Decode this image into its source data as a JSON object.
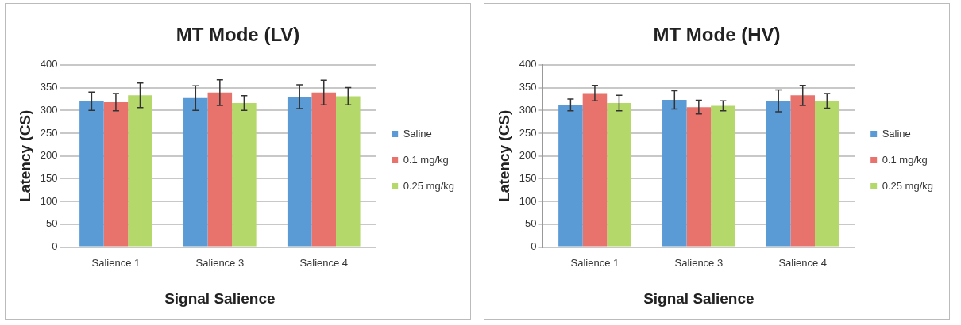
{
  "chart_data": [
    {
      "type": "bar",
      "title": "MT Mode (LV)",
      "xlabel": "Signal Salience",
      "ylabel": "Latency (CS)",
      "categories": [
        "Salience 1",
        "Salience 3",
        "Salience 4"
      ],
      "series": [
        {
          "name": "Saline",
          "color": "#5b9bd5",
          "values": [
            320,
            327,
            330
          ],
          "errors": [
            20,
            27,
            26
          ]
        },
        {
          "name": "0.1 mg/kg",
          "color": "#e8736c",
          "values": [
            318,
            339,
            339
          ],
          "errors": [
            19,
            28,
            27
          ]
        },
        {
          "name": "0.25 mg/kg",
          "color": "#b5d86a",
          "values": [
            333,
            316,
            331
          ],
          "errors": [
            27,
            16,
            19
          ]
        }
      ],
      "ylim": [
        0,
        400
      ],
      "yticks": [
        0,
        50,
        100,
        150,
        200,
        250,
        300,
        350,
        400
      ],
      "grid": "y",
      "legend": "right"
    },
    {
      "type": "bar",
      "title": "MT Mode (HV)",
      "xlabel": "Signal Salience",
      "ylabel": "Latency (CS)",
      "categories": [
        "Salience 1",
        "Salience 3",
        "Salience 4"
      ],
      "series": [
        {
          "name": "Saline",
          "color": "#5b9bd5",
          "values": [
            312,
            323,
            321
          ],
          "errors": [
            13,
            20,
            24
          ]
        },
        {
          "name": "0.1 mg/kg",
          "color": "#e8736c",
          "values": [
            338,
            307,
            333
          ],
          "errors": [
            17,
            15,
            22
          ]
        },
        {
          "name": "0.25 mg/kg",
          "color": "#b5d86a",
          "values": [
            316,
            310,
            321
          ],
          "errors": [
            17,
            11,
            16
          ]
        }
      ],
      "ylim": [
        0,
        400
      ],
      "yticks": [
        0,
        50,
        100,
        150,
        200,
        250,
        300,
        350,
        400
      ],
      "grid": "y",
      "legend": "right"
    }
  ]
}
